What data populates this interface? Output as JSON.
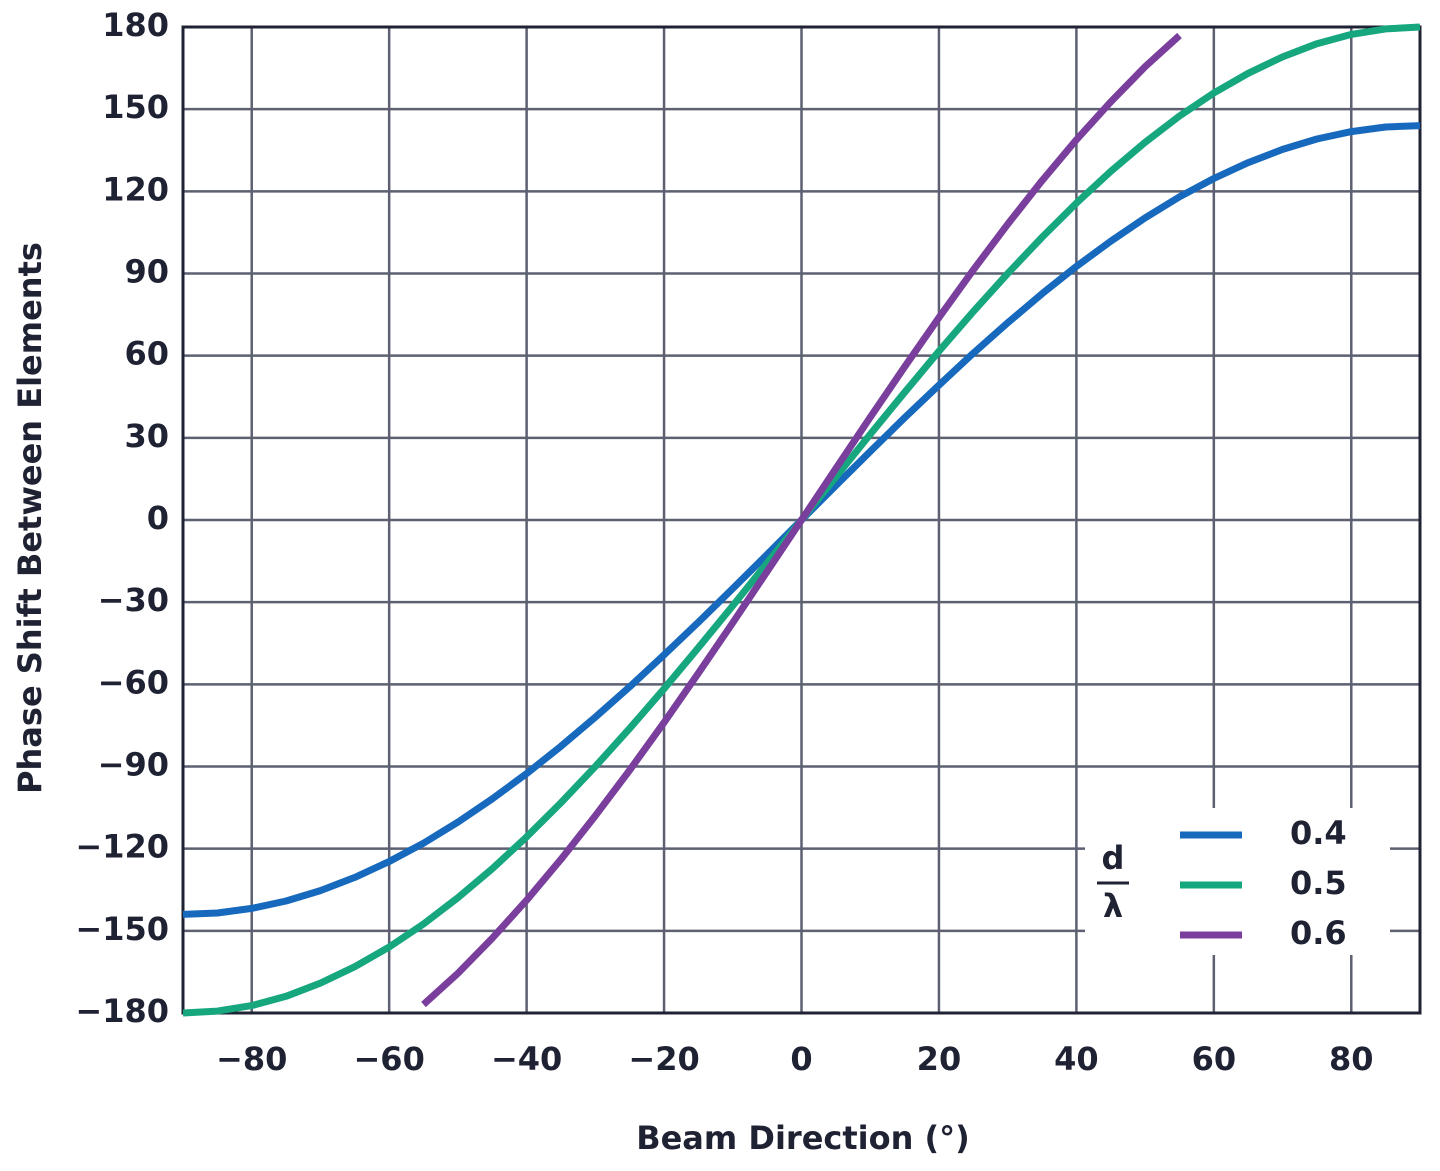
{
  "chart_data": {
    "type": "line",
    "xlabel": "Beam Direction (°)",
    "ylabel": "Phase Shift Between Elements",
    "x": [
      -90,
      -85,
      -80,
      -75,
      -70,
      -65,
      -60,
      -55,
      -50,
      -45,
      -40,
      -35,
      -30,
      -25,
      -20,
      -15,
      -10,
      -5,
      0,
      5,
      10,
      15,
      20,
      25,
      30,
      35,
      40,
      45,
      50,
      55,
      60,
      65,
      70,
      75,
      80,
      85,
      90
    ],
    "series": [
      {
        "name": "0.4",
        "color": "#1769bd",
        "values": [
          -144,
          -143.5,
          -141.8,
          -139.1,
          -135.3,
          -130.5,
          -124.7,
          -118,
          -110.3,
          -101.8,
          -92.6,
          -82.6,
          -72,
          -60.9,
          -49.2,
          -37.3,
          -25,
          -12.6,
          0,
          12.6,
          25,
          37.3,
          49.2,
          60.9,
          72,
          82.6,
          92.6,
          101.8,
          110.3,
          118,
          124.7,
          130.5,
          135.3,
          139.1,
          141.8,
          143.5,
          144
        ]
      },
      {
        "name": "0.5",
        "color": "#16a77f",
        "values": [
          -180,
          -179.3,
          -177.3,
          -173.9,
          -169.1,
          -163.1,
          -155.9,
          -147.5,
          -137.9,
          -127.3,
          -115.7,
          -103.2,
          -90,
          -76.1,
          -61.6,
          -46.6,
          -31.3,
          -15.7,
          0,
          15.7,
          31.3,
          46.6,
          61.6,
          76.1,
          90,
          103.2,
          115.7,
          127.3,
          137.9,
          147.5,
          155.9,
          163.1,
          169.1,
          173.9,
          177.3,
          179.3,
          180
        ]
      },
      {
        "name": "0.6",
        "color": "#7a3f9d",
        "values": [
          null,
          null,
          null,
          null,
          null,
          null,
          null,
          -176.9,
          -165.5,
          -152.7,
          -138.8,
          -123.9,
          -108,
          -91.3,
          -73.9,
          -55.9,
          -37.5,
          -18.8,
          0,
          18.8,
          37.5,
          55.9,
          73.9,
          91.3,
          108,
          123.9,
          138.8,
          152.7,
          165.5,
          176.9,
          null,
          null,
          null,
          null,
          null,
          null,
          null
        ]
      }
    ],
    "legend_title": {
      "numerator": "d",
      "denominator": "λ"
    },
    "legend": "lower right",
    "grid": true,
    "xlim": [
      -90,
      90
    ],
    "xticks": [
      {
        "value": -80,
        "label": "−80"
      },
      {
        "value": -60,
        "label": "−60"
      },
      {
        "value": -40,
        "label": "−40"
      },
      {
        "value": -20,
        "label": "−20"
      },
      0,
      20,
      40,
      60,
      80
    ],
    "ylim": [
      -180,
      180
    ],
    "yticks": [
      {
        "value": -180,
        "label": "−180"
      },
      {
        "value": -150,
        "label": "−150"
      },
      {
        "value": -120,
        "label": "−120"
      },
      {
        "value": -90,
        "label": "−90"
      },
      {
        "value": -60,
        "label": "−60"
      },
      {
        "value": -30,
        "label": "−30"
      },
      0,
      30,
      60,
      90,
      120,
      150,
      180
    ]
  }
}
